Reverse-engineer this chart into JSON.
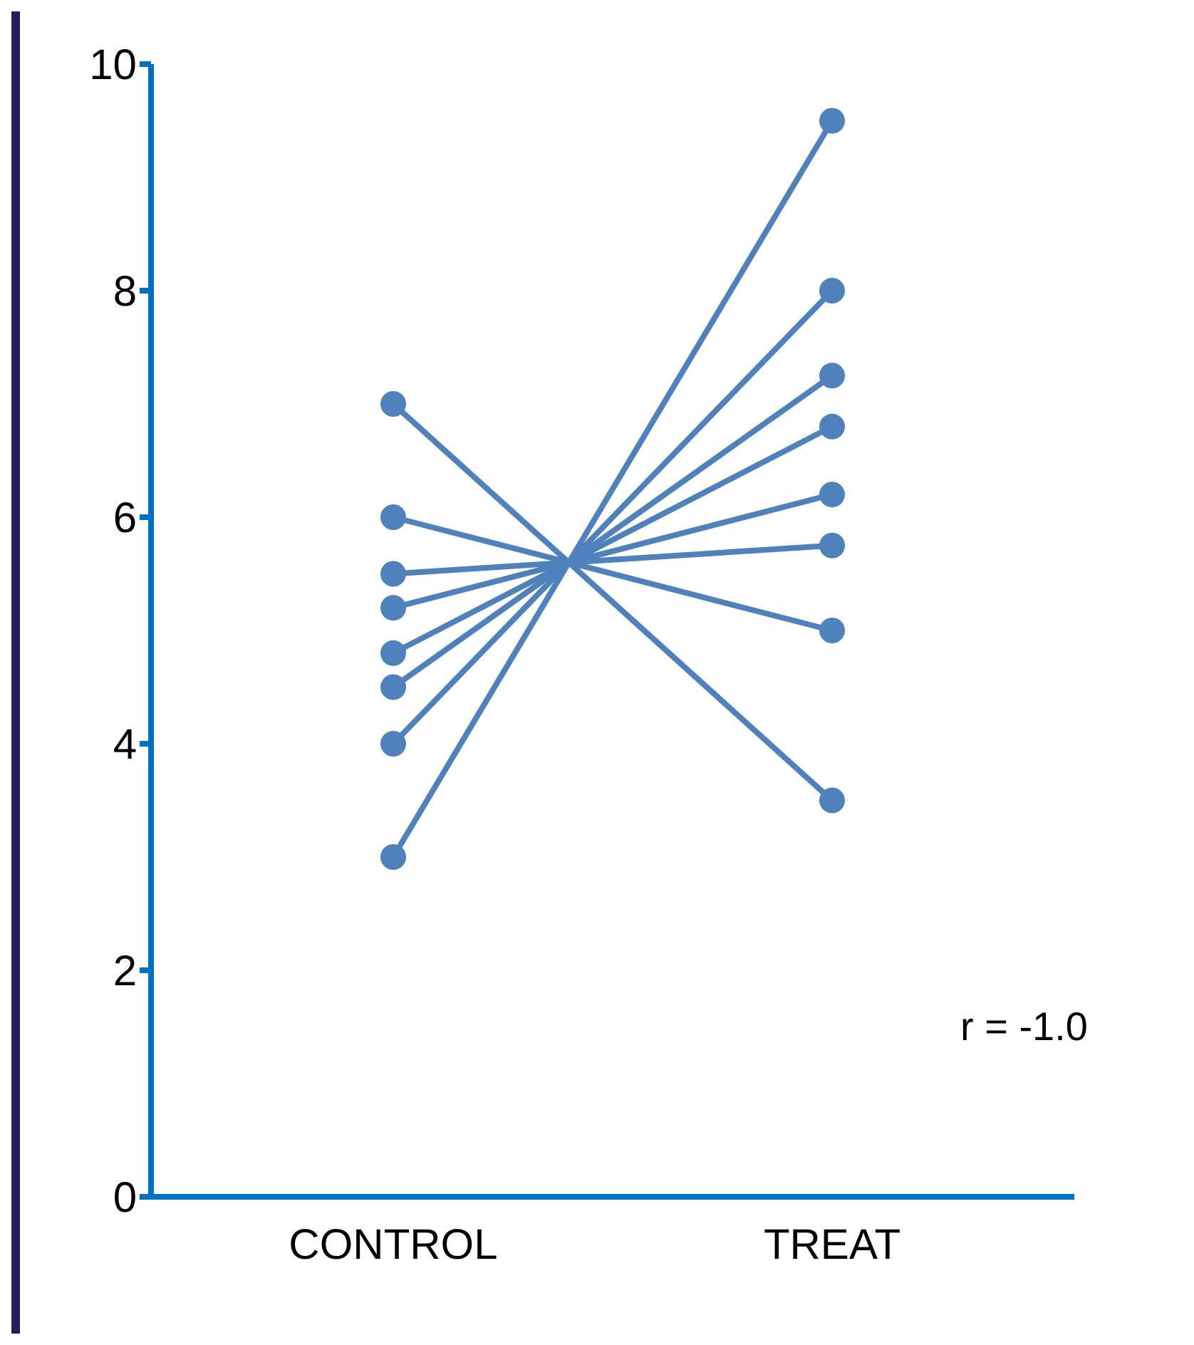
{
  "chart_data": {
    "type": "line",
    "categories": [
      "CONTROL",
      "TREAT"
    ],
    "series": [
      {
        "color": "#4f81bd",
        "values": [
          7,
          3.5
        ]
      },
      {
        "color": "#4f81bd",
        "values": [
          6,
          5
        ]
      },
      {
        "color": "#4f81bd",
        "values": [
          5.5,
          5.75
        ]
      },
      {
        "color": "#4f81bd",
        "values": [
          5.2,
          6.2
        ]
      },
      {
        "color": "#4f81bd",
        "values": [
          4.8,
          6.8
        ]
      },
      {
        "color": "#4f81bd",
        "values": [
          4.5,
          7.25
        ]
      },
      {
        "color": "#4f81bd",
        "values": [
          4,
          8
        ]
      },
      {
        "color": "#4f81bd",
        "values": [
          3,
          9.5
        ]
      }
    ],
    "ylim": [
      0,
      10
    ],
    "yticks": [
      0,
      2,
      4,
      6,
      8,
      10
    ],
    "grid": false,
    "legend": false,
    "marker": "circle",
    "line_style": "solid",
    "annotations": [
      "r = -1.0"
    ]
  }
}
